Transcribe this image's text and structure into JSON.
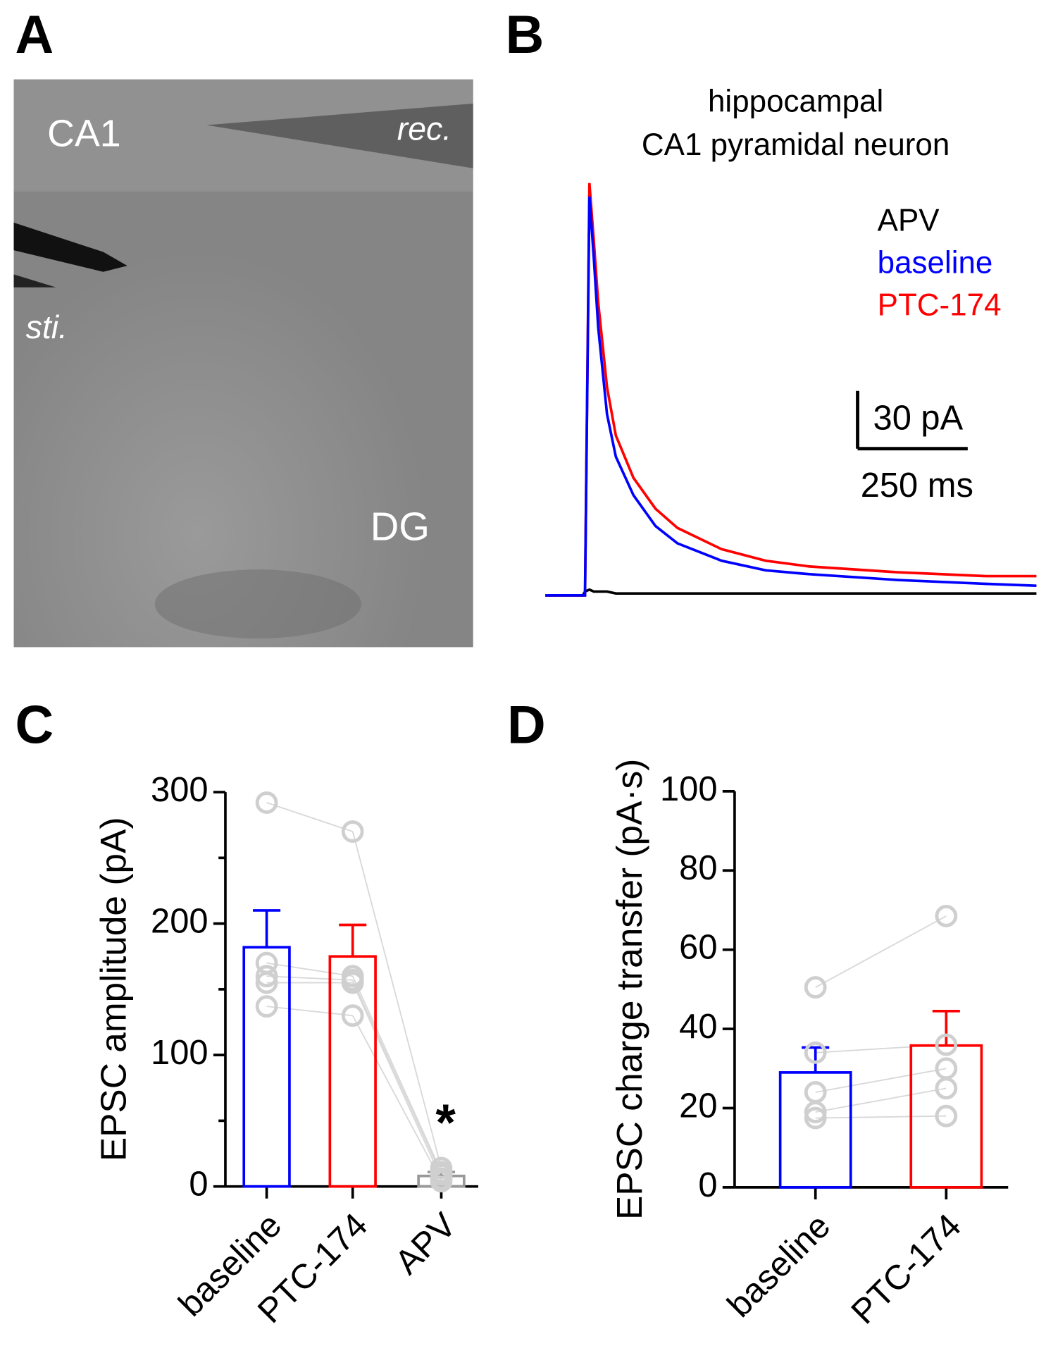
{
  "panel_labels": [
    "A",
    "B",
    "C",
    "D"
  ],
  "image": {
    "labels": [
      "CA1",
      "rec.",
      "sti.",
      "DG"
    ]
  },
  "chart_data": [
    {
      "type": "line",
      "title": [
        "hippocampal",
        "CA1 pyramidal neuron"
      ],
      "x": [
        0,
        85,
        90,
        100,
        110,
        120,
        140,
        160,
        200,
        250,
        300,
        400,
        500,
        600,
        800,
        1000,
        1115
      ],
      "series": [
        {
          "name": "APV",
          "color": "#000000",
          "values": [
            0,
            0,
            2,
            3,
            2,
            2,
            2,
            1,
            1,
            1,
            1,
            1,
            1,
            1,
            1,
            1,
            1
          ]
        },
        {
          "name": "PTC-174",
          "color": "#ff0000",
          "values": [
            0,
            0,
            0,
            214,
            184,
            152,
            108,
            83,
            61,
            45,
            35,
            24,
            18,
            15,
            12,
            10,
            10
          ]
        },
        {
          "name": "baseline",
          "color": "#0000ff",
          "values": [
            0,
            0,
            0,
            207,
            175,
            139,
            94,
            72,
            52,
            36,
            27,
            18,
            13,
            11,
            8,
            6,
            5
          ]
        }
      ],
      "legend_order": [
        "APV",
        "baseline",
        "PTC-174"
      ],
      "scale_bar": {
        "y": 30,
        "y_label": "30 pA",
        "x": 250,
        "x_label": "250 ms"
      }
    },
    {
      "type": "bar",
      "ylabel": "EPSC amplitude (pA)",
      "categories": [
        "baseline",
        "PTC-174",
        "APV"
      ],
      "values": [
        182,
        175,
        8
      ],
      "errors": [
        28,
        24,
        3
      ],
      "colors": [
        "#0000ff",
        "#ff0000",
        "#999999"
      ],
      "points": [
        [
          292,
          170,
          160,
          155,
          137
        ],
        [
          270,
          160,
          157,
          155,
          130
        ],
        [
          14,
          11,
          9,
          6,
          4
        ]
      ],
      "annotations": [
        {
          "category": 2,
          "text": "*"
        }
      ],
      "ylim": [
        0,
        300
      ],
      "yticks": [
        0,
        100,
        200,
        300
      ],
      "minor_yticks": [
        50,
        150,
        250
      ]
    },
    {
      "type": "bar",
      "ylabel": "EPSC charge transfer (pA·s)",
      "categories": [
        "baseline",
        "PTC-174"
      ],
      "values": [
        29,
        35.8
      ],
      "errors": [
        6.3,
        8.7
      ],
      "colors": [
        "#0000ff",
        "#ff0000"
      ],
      "points": [
        [
          50.5,
          34,
          24,
          19,
          17.5
        ],
        [
          68.5,
          36,
          30,
          25,
          18
        ]
      ],
      "ylim": [
        0,
        100
      ],
      "yticks": [
        0,
        20,
        40,
        60,
        80,
        100
      ]
    }
  ]
}
